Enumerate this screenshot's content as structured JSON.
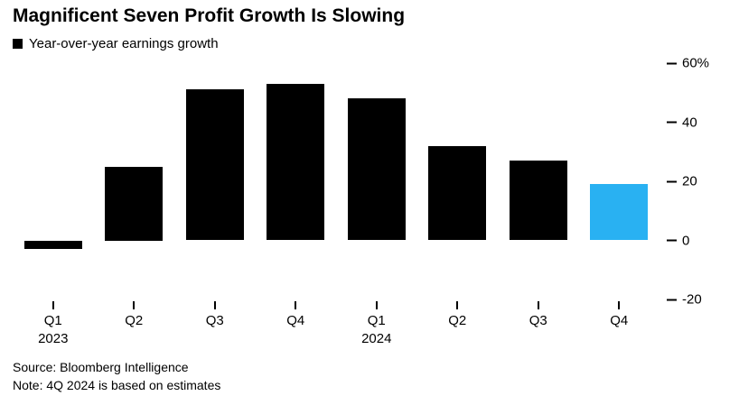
{
  "header": {
    "title": "Magnificent Seven Profit Growth Is Slowing",
    "legend_label": "Year-over-year earnings growth",
    "legend_swatch_color": "#000000"
  },
  "chart_data": {
    "type": "bar",
    "title": "Magnificent Seven Profit Growth Is Slowing",
    "legend": [
      "Year-over-year earnings growth"
    ],
    "legend_position": "top-left",
    "grid": false,
    "unit": "%",
    "categories": [
      "Q1",
      "Q2",
      "Q3",
      "Q4",
      "Q1",
      "Q2",
      "Q3",
      "Q4"
    ],
    "x_year_labels": [
      {
        "index": 0,
        "label": "2023"
      },
      {
        "index": 4,
        "label": "2024"
      }
    ],
    "series": [
      {
        "name": "Year-over-year earnings growth",
        "values": [
          -3,
          25,
          51,
          53,
          48,
          32,
          27,
          19
        ]
      }
    ],
    "ylim": [
      -20,
      60
    ],
    "yticks": [
      {
        "value": 60,
        "label": "60%"
      },
      {
        "value": 40,
        "label": "40"
      },
      {
        "value": 20,
        "label": "20"
      },
      {
        "value": 0,
        "label": "0"
      },
      {
        "value": -20,
        "label": "-20"
      }
    ],
    "bar_colors": {
      "default": "#000000",
      "highlight": "#29B1F2",
      "highlight_index": 7
    }
  },
  "footer": {
    "source": "Source: Bloomberg Intelligence",
    "note": "Note: 4Q 2024 is based on estimates"
  }
}
